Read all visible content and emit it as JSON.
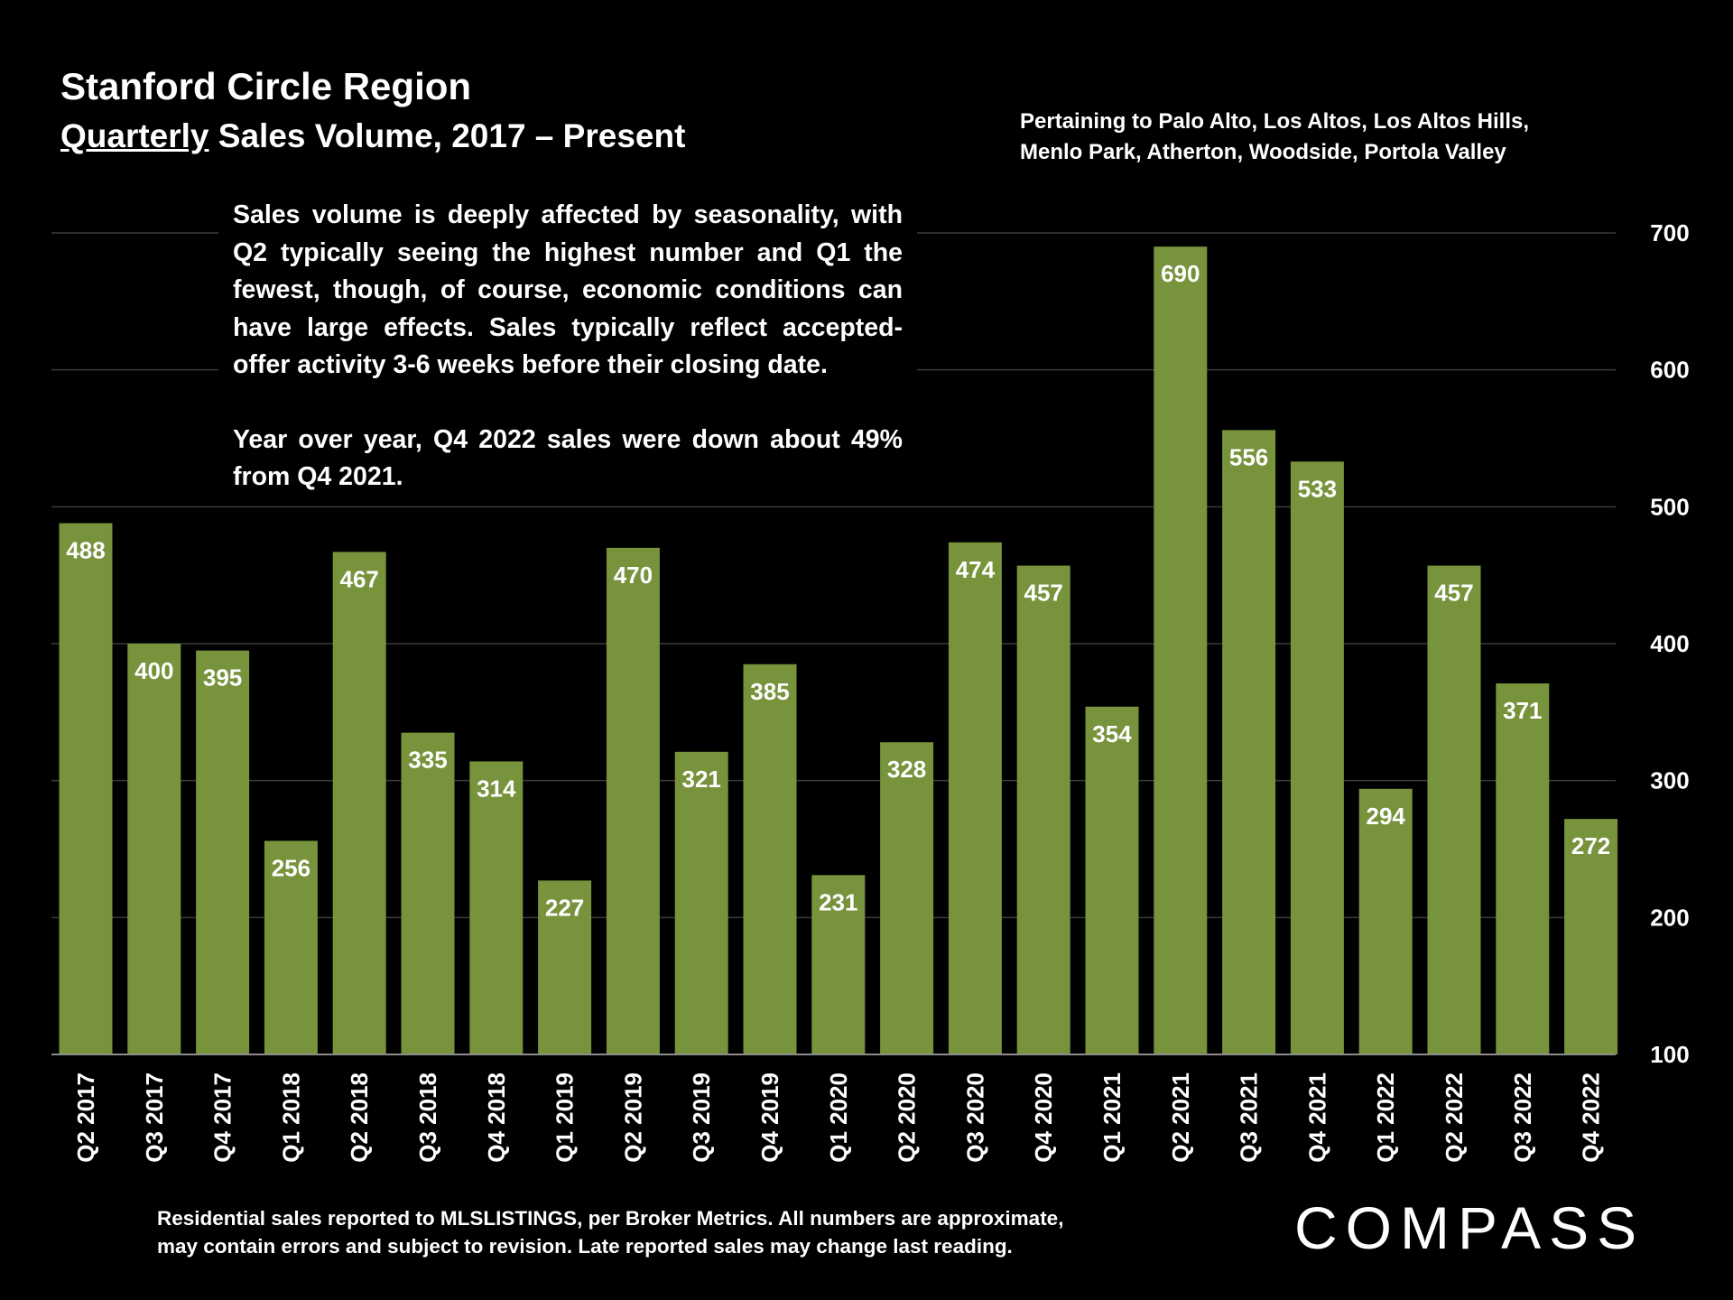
{
  "header": {
    "title": "Stanford Circle Region",
    "subtitle_underlined": "Quarterly",
    "subtitle_rest": " Sales Volume, 2017 – Present",
    "region_note": "Pertaining to Palo Alto, Los Altos, Los Altos Hills, Menlo Park, Atherton, Woodside, Portola Valley"
  },
  "commentary": {
    "paragraph_1": "Sales volume is deeply affected by seasonality, with Q2 typically seeing the highest number and Q1 the fewest, though, of course, economic conditions can have large effects. Sales typically reflect accepted-offer activity 3-6 weeks before their closing date.",
    "paragraph_2": "Year over year, Q4 2022 sales were down about 49% from Q4 2021."
  },
  "footnote": {
    "line_1": "Residential sales reported to MLSLISTINGS, per Broker Metrics. All numbers are approximate,",
    "line_2": "may contain errors and subject to revision. Late reported sales may change last reading."
  },
  "logo": {
    "text": "COMPASS"
  },
  "colors": {
    "bar": "#77933c",
    "background": "#000000",
    "text": "#ffffff",
    "gridline": "#3a3a3a"
  },
  "chart_data": {
    "type": "bar",
    "title": "Quarterly Sales Volume, 2017 – Present",
    "xlabel": "",
    "ylabel": "",
    "categories": [
      "Q2 2017",
      "Q3 2017",
      "Q4 2017",
      "Q1 2018",
      "Q2 2018",
      "Q3 2018",
      "Q4 2018",
      "Q1 2019",
      "Q2 2019",
      "Q3 2019",
      "Q4 2019",
      "Q1 2020",
      "Q2 2020",
      "Q3 2020",
      "Q4 2020",
      "Q1 2021",
      "Q2 2021",
      "Q3 2021",
      "Q4 2021",
      "Q1 2022",
      "Q2 2022",
      "Q3 2022",
      "Q4 2022"
    ],
    "values": [
      488,
      400,
      395,
      256,
      467,
      335,
      314,
      227,
      470,
      321,
      385,
      231,
      328,
      474,
      457,
      354,
      690,
      556,
      533,
      294,
      457,
      371,
      272
    ],
    "ylim": [
      100,
      700
    ],
    "yticks": [
      100,
      200,
      300,
      400,
      500,
      600,
      700
    ],
    "y_axis_side": "right",
    "grid": true,
    "data_labels": true
  }
}
